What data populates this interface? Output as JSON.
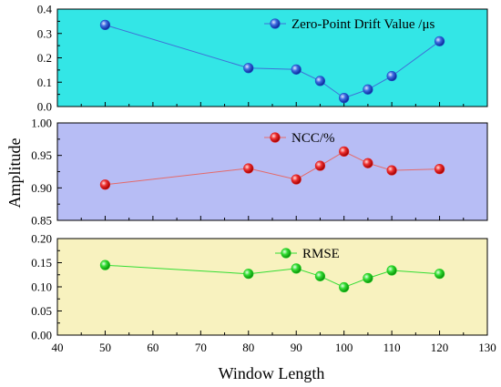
{
  "chart_data": {
    "type": "line",
    "xlabel": "Window Length",
    "ylabel": "Amplitude",
    "xlim": [
      40,
      130
    ],
    "x_ticks": [
      "40",
      "50",
      "60",
      "70",
      "80",
      "90",
      "100",
      "110",
      "120",
      "130"
    ],
    "legend_placement": "top-right",
    "panels": [
      {
        "series_name": "Zero-Point Drift Value /μs",
        "x": [
          50,
          80,
          90,
          95,
          100,
          105,
          110,
          120
        ],
        "y": [
          0.335,
          0.158,
          0.152,
          0.105,
          0.035,
          0.07,
          0.125,
          0.268
        ],
        "ylim": [
          0,
          0.4
        ],
        "y_ticks": [
          "0.0",
          "0.1",
          "0.2",
          "0.3",
          "0.4"
        ],
        "background": "#33e6e6",
        "line_color": "#3f6fd8",
        "marker_color": "#1f4fc8"
      },
      {
        "series_name": "NCC/%",
        "x": [
          50,
          80,
          90,
          95,
          100,
          105,
          110,
          120
        ],
        "y": [
          0.905,
          0.93,
          0.913,
          0.934,
          0.956,
          0.938,
          0.927,
          0.929
        ],
        "ylim": [
          0.85,
          1.0
        ],
        "y_ticks": [
          "0.85",
          "0.90",
          "0.95",
          "1.00"
        ],
        "background": "#b7bdf5",
        "line_color": "#e46a6a",
        "marker_color": "#e02020"
      },
      {
        "series_name": "RMSE",
        "x": [
          50,
          80,
          90,
          95,
          100,
          105,
          110,
          120
        ],
        "y": [
          0.145,
          0.127,
          0.138,
          0.122,
          0.099,
          0.118,
          0.134,
          0.127
        ],
        "ylim": [
          0,
          0.2
        ],
        "y_ticks": [
          "0.00",
          "0.05",
          "0.10",
          "0.15",
          "0.20"
        ],
        "background": "#f8f2bf",
        "line_color": "#33dd33",
        "marker_color": "#22cc22"
      }
    ]
  }
}
